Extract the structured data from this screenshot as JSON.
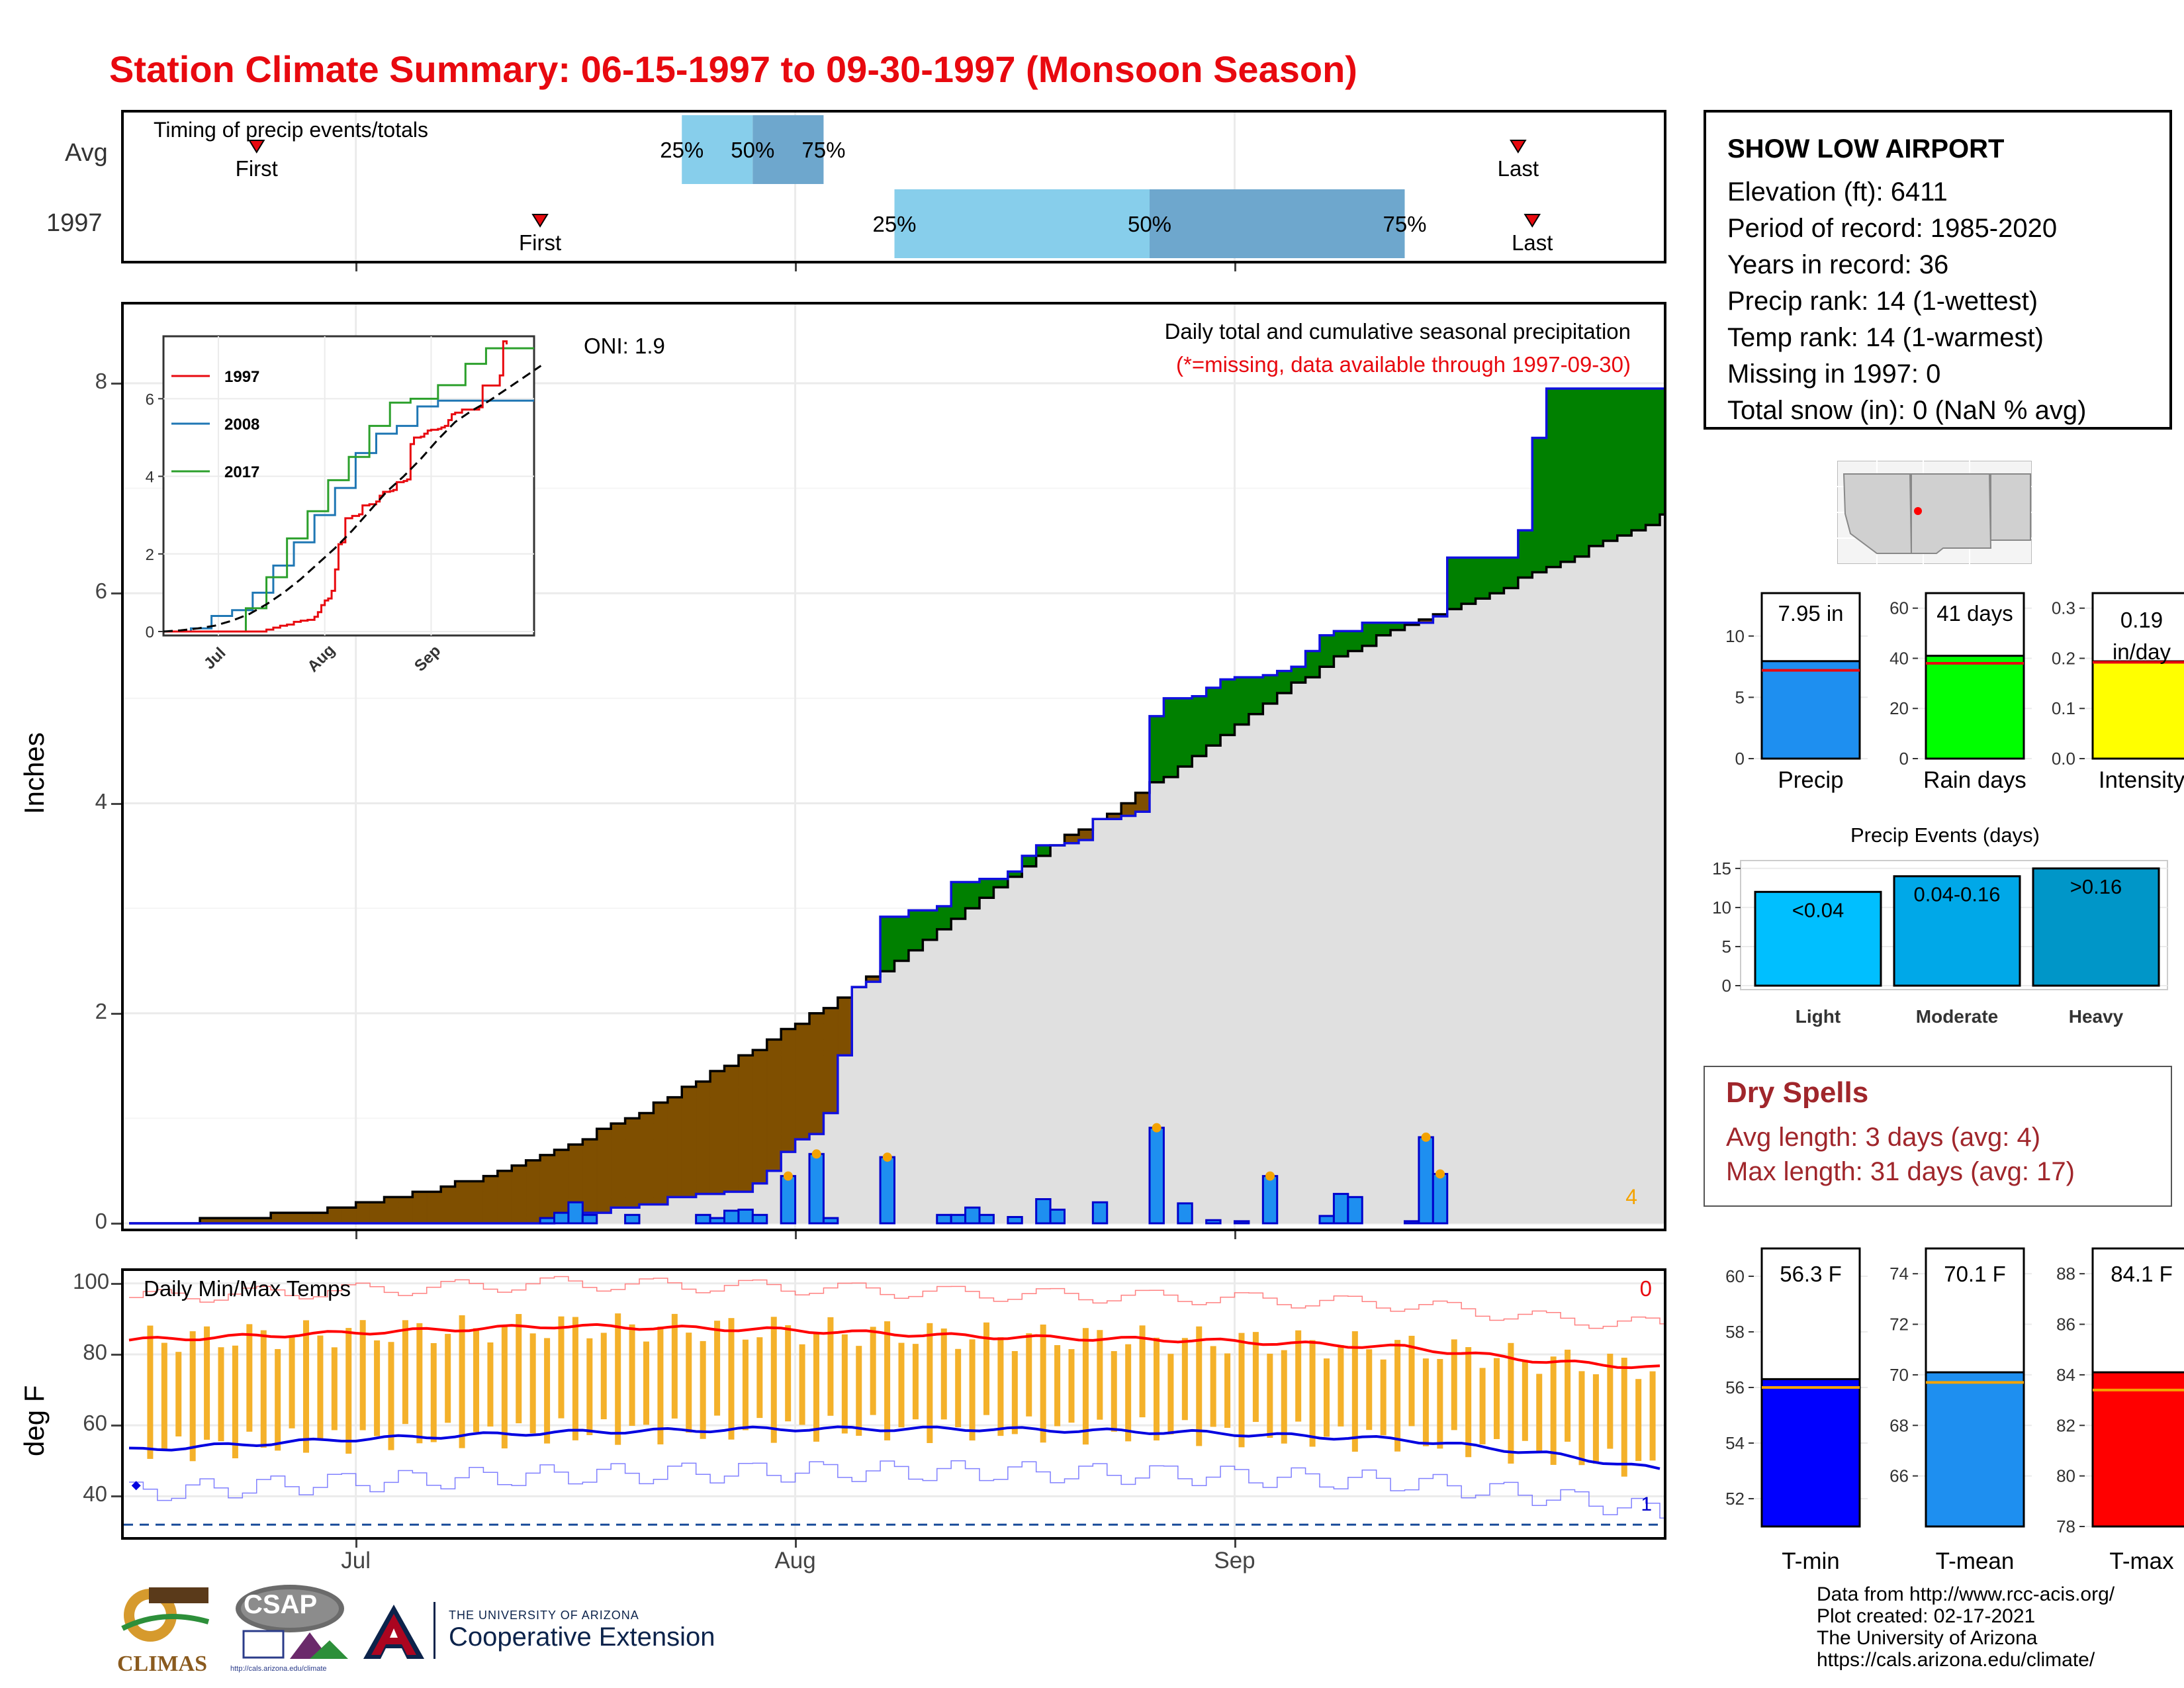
{
  "title": "Station Climate Summary: 06-15-1997 to 09-30-1997 (Monsoon Season)",
  "timing": {
    "label": "Timing of precip events/totals",
    "rows": [
      {
        "name": "Avg",
        "first": "06-24",
        "q25": "07-24",
        "q50": "07-29",
        "q75": "08-03",
        "last": "09-21"
      },
      {
        "name": "1997",
        "first": "07-14",
        "q25": "08-08",
        "q50": "08-26",
        "q75": "09-13",
        "last": "09-22"
      }
    ],
    "labels": {
      "first": "First",
      "last": "Last",
      "p25": "25%",
      "p50": "50%",
      "p75": "75%"
    }
  },
  "main": {
    "ylabel": "Inches",
    "caption": "Daily total and cumulative seasonal precipitation",
    "note": "(*=missing, data available through 1997-09-30)",
    "oni": "ONI: 1.9",
    "count_label": "4",
    "xticks": [
      "Jul",
      "Aug",
      "Sep"
    ],
    "yticks": [
      "0",
      "2",
      "4",
      "6",
      "8"
    ]
  },
  "inset": {
    "legend": [
      "1997",
      "2008",
      "2017"
    ],
    "yticks": [
      "0",
      "2",
      "4",
      "6"
    ],
    "xticks": [
      "Jul",
      "Aug",
      "Sep"
    ]
  },
  "temps": {
    "label": "Daily Min/Max Temps",
    "ylabel": "deg F",
    "yticks": [
      "40",
      "60",
      "80",
      "100"
    ],
    "xticks": [
      "Jul",
      "Aug",
      "Sep"
    ],
    "count_hot": "0",
    "count_cold": "1"
  },
  "station": {
    "name": "SHOW LOW AIRPORT",
    "lines": [
      "Elevation (ft): 6411",
      "Period of record: 1985-2020",
      "Years in record: 36",
      "Precip rank: 14 (1-wettest)",
      "Temp rank: 14 (1-warmest)",
      "Missing in 1997: 0",
      "Total snow (in): 0 (NaN % avg)"
    ]
  },
  "summary_bars": [
    {
      "label": "Precip",
      "value_text": "7.95 in",
      "value": 7.95,
      "avg": 7.2,
      "ymax": 13.5,
      "yticks": [
        "0",
        "5",
        "10"
      ],
      "tickvals": [
        0,
        5,
        10
      ],
      "color": "#1e8ff0"
    },
    {
      "label": "Rain days",
      "value_text": "41 days",
      "value": 41,
      "avg": 38,
      "ymax": 66,
      "yticks": [
        "0",
        "20",
        "40",
        "60"
      ],
      "tickvals": [
        0,
        20,
        40,
        60
      ],
      "color": "#00ff00"
    },
    {
      "label": "Intensity",
      "value_text": "0.19 in/day",
      "value": 0.194,
      "avg": 0.192,
      "ymax": 0.33,
      "yticks": [
        "0.0",
        "0.1",
        "0.2",
        "0.3"
      ],
      "tickvals": [
        0,
        0.1,
        0.2,
        0.3
      ],
      "color": "#ffff00"
    }
  ],
  "events": {
    "title": "Precip Events (days)",
    "yticks": [
      "0",
      "5",
      "10",
      "15"
    ],
    "bars": [
      {
        "label": "Light",
        "range": "<0.04",
        "value": 12,
        "color": "#00bfff"
      },
      {
        "label": "Moderate",
        "range": "0.04-0.16",
        "value": 14,
        "color": "#00a8e8"
      },
      {
        "label": "Heavy",
        "range": ">0.16",
        "value": 15,
        "color": "#0096c8"
      }
    ]
  },
  "dry_spells": {
    "title": "Dry Spells",
    "lines": [
      "Avg length: 3 days (avg: 4)",
      "Max length: 31 days (avg: 17)"
    ]
  },
  "temp_bars": [
    {
      "label": "T-min",
      "value_text": "56.3 F",
      "value": 56.3,
      "avg": 56.0,
      "ymin": 51,
      "ymax": 61,
      "yticks": [
        "52",
        "54",
        "56",
        "58",
        "60"
      ],
      "tickvals": [
        52,
        54,
        56,
        58,
        60
      ],
      "color": "#0000ff"
    },
    {
      "label": "T-mean",
      "value_text": "70.1 F",
      "value": 70.1,
      "avg": 69.7,
      "ymin": 64,
      "ymax": 75,
      "yticks": [
        "66",
        "68",
        "70",
        "72",
        "74"
      ],
      "tickvals": [
        66,
        68,
        70,
        72,
        74
      ],
      "color": "#1e8ff0"
    },
    {
      "label": "T-max",
      "value_text": "84.1 F",
      "value": 84.1,
      "avg": 83.4,
      "ymin": 78,
      "ymax": 89,
      "yticks": [
        "78",
        "80",
        "82",
        "84",
        "86",
        "88"
      ],
      "tickvals": [
        78,
        80,
        82,
        84,
        86,
        88
      ],
      "color": "#ff0000"
    }
  ],
  "footer": {
    "lines": [
      "Data from http://www.rcc-acis.org/",
      "Plot created: 02-17-2021",
      "The University of Arizona",
      "https://cals.arizona.edu/climate/"
    ]
  },
  "logos": {
    "climas": "CLIMAS",
    "csap": "CSAP",
    "csap_url": "http://cals.arizona.edu/climate",
    "ua_small": "THE UNIVERSITY OF ARIZONA",
    "ua_big": "Cooperative Extension"
  },
  "chart_data": [
    {
      "type": "step-area",
      "title": "Daily total and cumulative seasonal precipitation",
      "ylabel": "Inches",
      "ylim": [
        0,
        8.7
      ],
      "x_range": [
        "06-15",
        "09-30"
      ],
      "avg_cumulative": [
        [
          0,
          0
        ],
        [
          5,
          0.03
        ],
        [
          10,
          0.08
        ],
        [
          15,
          0.15
        ],
        [
          20,
          0.28
        ],
        [
          25,
          0.45
        ],
        [
          30,
          0.7
        ],
        [
          35,
          1.0
        ],
        [
          40,
          1.35
        ],
        [
          45,
          1.75
        ],
        [
          50,
          2.15
        ],
        [
          55,
          2.6
        ],
        [
          60,
          3.1
        ],
        [
          65,
          3.6
        ],
        [
          70,
          4.0
        ],
        [
          75,
          4.45
        ],
        [
          80,
          4.95
        ],
        [
          85,
          5.4
        ],
        [
          90,
          5.7
        ],
        [
          95,
          5.95
        ],
        [
          100,
          6.25
        ],
        [
          105,
          6.55
        ],
        [
          110,
          6.85
        ]
      ],
      "obs_cumulative": [
        [
          0,
          0
        ],
        [
          28,
          0
        ],
        [
          30,
          0.05
        ],
        [
          32,
          0.1
        ],
        [
          34,
          0.15
        ],
        [
          36,
          0.18
        ],
        [
          38,
          0.25
        ],
        [
          40,
          0.28
        ],
        [
          42,
          0.3
        ],
        [
          44,
          0.38
        ],
        [
          45,
          0.5
        ],
        [
          46,
          0.68
        ],
        [
          47,
          0.8
        ],
        [
          48,
          0.85
        ],
        [
          49,
          1.05
        ],
        [
          50,
          1.6
        ],
        [
          51,
          2.25
        ],
        [
          52,
          2.3
        ],
        [
          53,
          2.92
        ],
        [
          55,
          2.98
        ],
        [
          57,
          3.02
        ],
        [
          58,
          3.25
        ],
        [
          60,
          3.28
        ],
        [
          62,
          3.35
        ],
        [
          63,
          3.5
        ],
        [
          64,
          3.6
        ],
        [
          66,
          3.62
        ],
        [
          67,
          3.65
        ],
        [
          68,
          3.85
        ],
        [
          70,
          3.88
        ],
        [
          71,
          3.92
        ],
        [
          72,
          4.83
        ],
        [
          73,
          5.0
        ],
        [
          75,
          5.02
        ],
        [
          76,
          5.1
        ],
        [
          77,
          5.18
        ],
        [
          78,
          5.2
        ],
        [
          80,
          5.22
        ],
        [
          81,
          5.26
        ],
        [
          82,
          5.3
        ],
        [
          83,
          5.45
        ],
        [
          84,
          5.6
        ],
        [
          85,
          5.64
        ],
        [
          87,
          5.72
        ],
        [
          90,
          5.72
        ],
        [
          92,
          5.78
        ],
        [
          93,
          6.34
        ],
        [
          98,
          6.6
        ],
        [
          99,
          7.48
        ],
        [
          100,
          7.95
        ],
        [
          109,
          7.95
        ]
      ],
      "daily": [
        [
          29,
          0.05
        ],
        [
          30,
          0.1
        ],
        [
          31,
          0.2
        ],
        [
          32,
          0.08
        ],
        [
          35,
          0.08
        ],
        [
          40,
          0.08
        ],
        [
          41,
          0.05
        ],
        [
          42,
          0.12
        ],
        [
          43,
          0.13
        ],
        [
          44,
          0.08
        ],
        [
          46,
          0.45
        ],
        [
          48,
          0.66
        ],
        [
          49,
          0.05
        ],
        [
          53,
          0.63
        ],
        [
          57,
          0.08
        ],
        [
          58,
          0.08
        ],
        [
          59,
          0.15
        ],
        [
          60,
          0.08
        ],
        [
          62,
          0.06
        ],
        [
          64,
          0.23
        ],
        [
          65,
          0.13
        ],
        [
          68,
          0.2
        ],
        [
          72,
          0.91
        ],
        [
          74,
          0.19
        ],
        [
          76,
          0.03
        ],
        [
          78,
          0.02
        ],
        [
          80,
          0.45
        ],
        [
          84,
          0.07
        ],
        [
          85,
          0.28
        ],
        [
          86,
          0.25
        ],
        [
          90,
          0.02
        ],
        [
          91,
          0.82
        ],
        [
          92,
          0.47
        ]
      ],
      "series": [
        {
          "name": "1997",
          "color": "#e8090f"
        },
        {
          "name": "2008",
          "color": "#1f77b4"
        },
        {
          "name": "2017",
          "color": "#2ca02c"
        }
      ]
    },
    {
      "type": "line",
      "title": "Daily Min/Max Temps",
      "ylabel": "deg F",
      "ylim": [
        30,
        102
      ],
      "avg_max": [
        [
          0,
          84
        ],
        [
          15,
          86
        ],
        [
          30,
          88
        ],
        [
          45,
          87
        ],
        [
          60,
          85
        ],
        [
          75,
          84
        ],
        [
          90,
          82
        ],
        [
          100,
          78
        ],
        [
          109,
          76
        ]
      ],
      "avg_min": [
        [
          0,
          53
        ],
        [
          15,
          56
        ],
        [
          30,
          58
        ],
        [
          45,
          59
        ],
        [
          60,
          59
        ],
        [
          75,
          58
        ],
        [
          90,
          56
        ],
        [
          100,
          52
        ],
        [
          109,
          47
        ]
      ],
      "freeze_line": 32
    }
  ]
}
